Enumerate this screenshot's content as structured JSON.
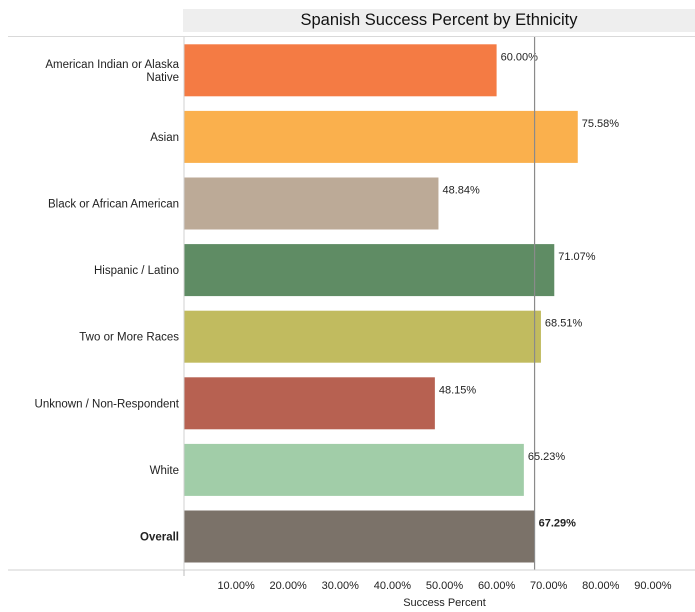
{
  "chart_data": {
    "type": "bar",
    "orientation": "horizontal",
    "title": "Spanish Success Percent by Ethnicity",
    "xlabel": "Success Percent",
    "ylabel": "",
    "xlim": [
      0,
      100
    ],
    "ticks": [
      "10.00%",
      "20.00%",
      "30.00%",
      "40.00%",
      "50.00%",
      "60.00%",
      "70.00%",
      "80.00%",
      "90.00%"
    ],
    "tick_values": [
      10,
      20,
      30,
      40,
      50,
      60,
      70,
      80,
      90
    ],
    "reference_line": 67.29,
    "grid": false,
    "categories": [
      {
        "label_lines": [
          "American Indian or Alaska",
          "Native"
        ],
        "value": 60.0,
        "value_label": "60.00%",
        "color": "#f47b44",
        "bold": false
      },
      {
        "label_lines": [
          "Asian"
        ],
        "value": 75.58,
        "value_label": "75.58%",
        "color": "#fab04d",
        "bold": false
      },
      {
        "label_lines": [
          "Black or African American"
        ],
        "value": 48.84,
        "value_label": "48.84%",
        "color": "#bcaa97",
        "bold": false
      },
      {
        "label_lines": [
          "Hispanic / Latino"
        ],
        "value": 71.07,
        "value_label": "71.07%",
        "color": "#5f8c64",
        "bold": false
      },
      {
        "label_lines": [
          "Two or More Races"
        ],
        "value": 68.51,
        "value_label": "68.51%",
        "color": "#c1bb5f",
        "bold": false
      },
      {
        "label_lines": [
          "Unknown / Non-Respondent"
        ],
        "value": 48.15,
        "value_label": "48.15%",
        "color": "#b76151",
        "bold": false
      },
      {
        "label_lines": [
          "White"
        ],
        "value": 65.23,
        "value_label": "65.23%",
        "color": "#a1cda8",
        "bold": false
      },
      {
        "label_lines": [
          "Overall"
        ],
        "value": 67.29,
        "value_label": "67.29%",
        "color": "#7b7269",
        "bold": true
      }
    ]
  }
}
